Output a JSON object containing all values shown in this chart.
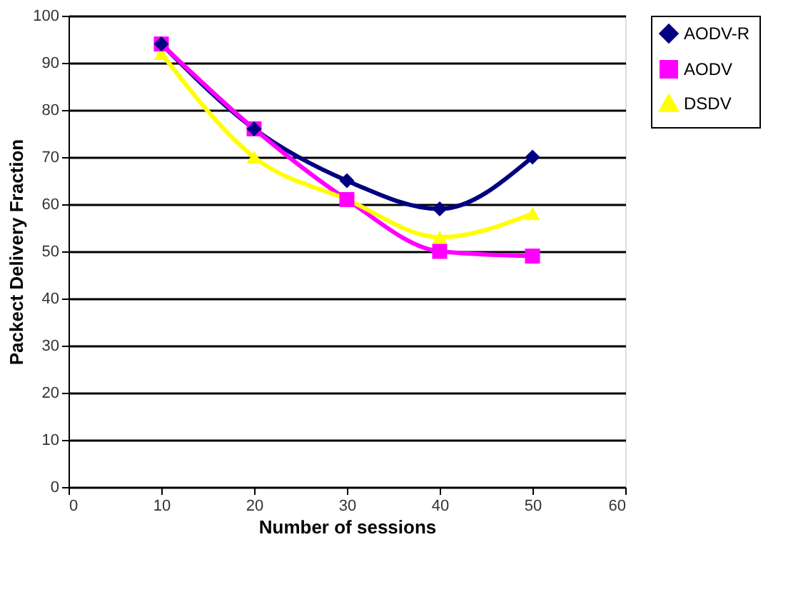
{
  "chart_data": {
    "type": "line",
    "xlabel": "Number of sessions",
    "ylabel": "Packect Delivery Fraction",
    "x": [
      10,
      20,
      30,
      40,
      50
    ],
    "series": [
      {
        "name": "AODV-R",
        "color": "#000080",
        "marker": "diamond",
        "values": [
          94,
          76,
          65,
          59,
          70
        ]
      },
      {
        "name": "AODV",
        "color": "#ff00ff",
        "marker": "square",
        "values": [
          94,
          76,
          61,
          50,
          49
        ]
      },
      {
        "name": "DSDV",
        "color": "#ffff00",
        "marker": "triangle",
        "values": [
          92,
          70,
          61,
          53,
          58
        ]
      }
    ],
    "xlim": [
      0,
      60
    ],
    "xticks": [
      0,
      10,
      20,
      30,
      40,
      50,
      60
    ],
    "ylim": [
      0,
      100
    ],
    "yticks": [
      0,
      10,
      20,
      30,
      40,
      50,
      60,
      70,
      80,
      90,
      100
    ],
    "grid": "y",
    "legend": "right",
    "line_style": "solid"
  }
}
